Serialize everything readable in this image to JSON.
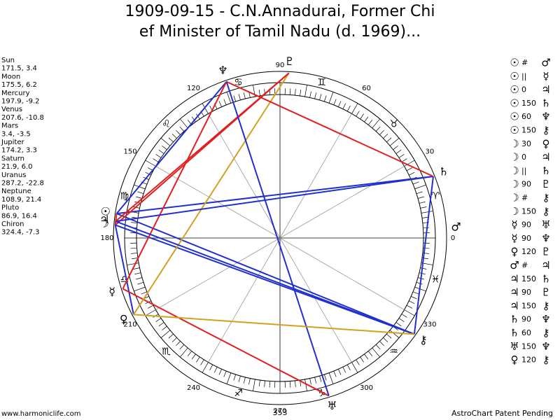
{
  "title": [
    "1909-09-15 - C.N.Annadurai, Former Chi",
    "ef Minister of Tamil Nadu (d. 1969)..."
  ],
  "planets": [
    {
      "name": "Sun",
      "glyph": "☉",
      "position": "171.5, 3.4"
    },
    {
      "name": "Moon",
      "glyph": "☽",
      "position": "175.5, 6.2"
    },
    {
      "name": "Mercury",
      "glyph": "☿",
      "position": "197.9, -9.2"
    },
    {
      "name": "Venus",
      "glyph": "♀",
      "position": "207.6, -10.8"
    },
    {
      "name": "Mars",
      "glyph": "♂",
      "position": "3.4, -3.5"
    },
    {
      "name": "Jupiter",
      "glyph": "♃",
      "position": "174.2, 3.3"
    },
    {
      "name": "Saturn",
      "glyph": "♄",
      "position": "21.9, 6.0"
    },
    {
      "name": "Uranus",
      "glyph": "♅",
      "position": "287.2, -22.8"
    },
    {
      "name": "Neptune",
      "glyph": "♆",
      "position": "108.9, 21.4"
    },
    {
      "name": "Pluto",
      "glyph": "♇",
      "position": "86.9, 16.4"
    },
    {
      "name": "Chiron",
      "glyph": "⚷",
      "position": "324.4, -7.3"
    }
  ],
  "signs": [
    "♈",
    "♉",
    "♊",
    "♋",
    "♌",
    "♍",
    "♎",
    "♏",
    "♐",
    "♑",
    "♒",
    "♓"
  ],
  "degree_labels": [
    0,
    30,
    60,
    90,
    120,
    150,
    180,
    210,
    240,
    270,
    300,
    330
  ],
  "bottom_label": "353",
  "aspects": [
    {
      "p1": 0,
      "aspect": "#",
      "p2": 4
    },
    {
      "p1": 0,
      "aspect": "||",
      "p2": 2
    },
    {
      "p1": 0,
      "aspect": "0",
      "p2": 5,
      "color": "#e02020"
    },
    {
      "p1": 0,
      "aspect": "150",
      "p2": 6,
      "color": "#2030d0"
    },
    {
      "p1": 0,
      "aspect": "60",
      "p2": 8,
      "color": "#2030d0"
    },
    {
      "p1": 0,
      "aspect": "150",
      "p2": 10,
      "color": "#2030d0"
    },
    {
      "p1": 1,
      "aspect": "30",
      "p2": 3,
      "color": "#2030d0"
    },
    {
      "p1": 1,
      "aspect": "0",
      "p2": 5,
      "color": "#e02020"
    },
    {
      "p1": 1,
      "aspect": "||",
      "p2": 6
    },
    {
      "p1": 1,
      "aspect": "90",
      "p2": 9,
      "color": "#e02020"
    },
    {
      "p1": 1,
      "aspect": "#",
      "p2": 10
    },
    {
      "p1": 1,
      "aspect": "150",
      "p2": 10,
      "color": "#2030d0"
    },
    {
      "p1": 2,
      "aspect": "90",
      "p2": 7,
      "color": "#e02020"
    },
    {
      "p1": 2,
      "aspect": "90",
      "p2": 8,
      "color": "#e02020"
    },
    {
      "p1": 3,
      "aspect": "120",
      "p2": 9,
      "color": "#d4a020"
    },
    {
      "p1": 4,
      "aspect": "#",
      "p2": 5
    },
    {
      "p1": 5,
      "aspect": "150",
      "p2": 6,
      "color": "#2030d0"
    },
    {
      "p1": 5,
      "aspect": "90",
      "p2": 9,
      "color": "#e02020"
    },
    {
      "p1": 5,
      "aspect": "150",
      "p2": 10,
      "color": "#2030d0"
    },
    {
      "p1": 6,
      "aspect": "90",
      "p2": 8,
      "color": "#e02020"
    },
    {
      "p1": 6,
      "aspect": "60",
      "p2": 10,
      "color": "#2030d0"
    },
    {
      "p1": 7,
      "aspect": "150",
      "p2": 8,
      "color": "#2030d0"
    },
    {
      "p1": 3,
      "aspect": "120",
      "p2": 10,
      "color": "#d4a020"
    }
  ],
  "footer": {
    "left": "www.harmoniclife.com",
    "right": "AstroChart Patent Pending"
  }
}
